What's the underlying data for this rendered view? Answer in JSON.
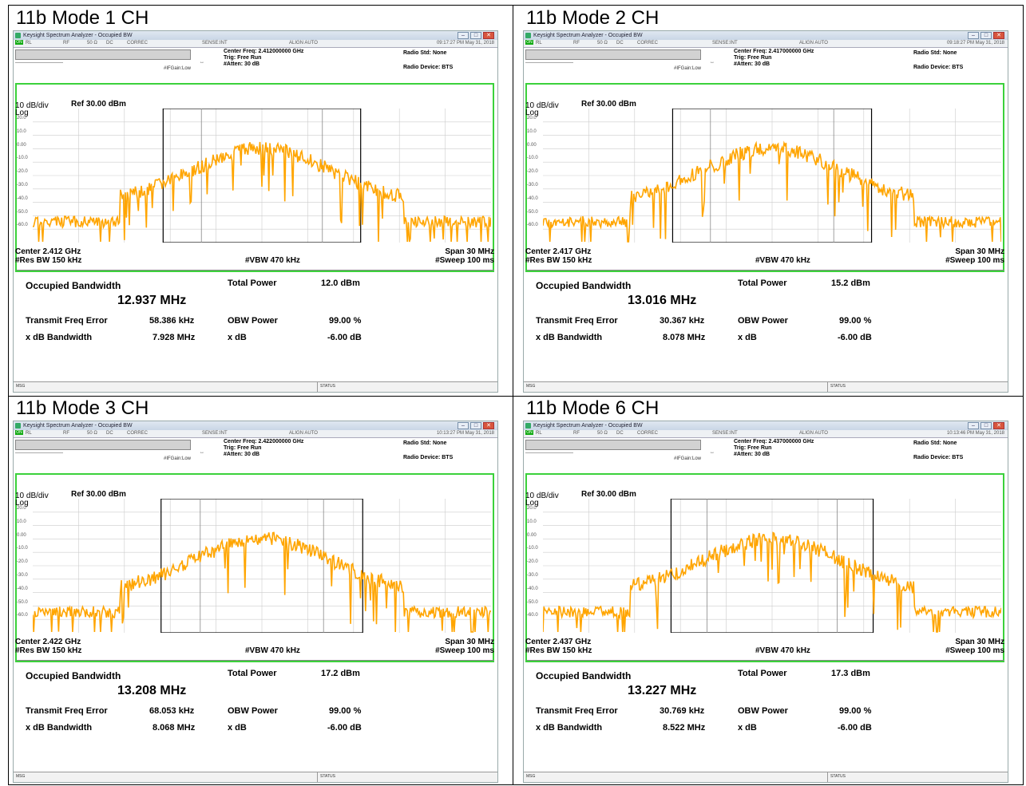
{
  "window": {
    "title": "Keysight Spectrum Analyzer - Occupied BW",
    "menu": {
      "rl": "RL",
      "rf": "RF",
      "ohm": "50 Ω",
      "dc": "DC",
      "corrdc": "CORREC",
      "sense": "SENSE:INT",
      "align": "ALIGN AUTO"
    },
    "if_gain": "#IFGain:Low",
    "trig": "Trig: Free Run",
    "atten": "#Atten: 30 dB",
    "radio_std": "Radio Std: None",
    "radio_device": "Radio Device: BTS",
    "scale": "10 dB/div",
    "log": "Log",
    "ref": "Ref 30.00 dBm",
    "ylabels": [
      "20.0",
      "10.0",
      "0.00",
      "-10.0",
      "-20.0",
      "-30.0",
      "-40.0",
      "-50.0",
      "-60.0"
    ],
    "res_bw": "#Res BW  150 kHz",
    "vbw": "#VBW  470 kHz",
    "span": "Span 30 MHz",
    "sweep": "#Sweep  100 ms",
    "labels": {
      "occ_bw": "Occupied Bandwidth",
      "total_power": "Total Power",
      "tfe": "Transmit Freq Error",
      "obw_power": "OBW Power",
      "xdb_bw": "x dB Bandwidth",
      "xdb": "x dB"
    },
    "msg": "MSG",
    "status": "STATUS",
    "trace_color": "#ffa500",
    "frame_color": "#3bd13b"
  },
  "panels": [
    {
      "title": "11b Mode 1 CH",
      "timestamp": "09:17:27 PM May 31, 2018",
      "center_freq": "Center Freq: 2.412000000 GHz",
      "center": "Center  2.412 GHz",
      "occ_bw": "12.937 MHz",
      "total_power": "12.0 dBm",
      "tfe": "58.386 kHz",
      "obw_power": "99.00 %",
      "xdb_bw": "7.928 MHz",
      "xdb": "-6.00 dB",
      "obw_fraction": 0.431,
      "xdb_fraction": 0.264
    },
    {
      "title": "11b Mode 2 CH",
      "timestamp": "09:18:27 PM May 31, 2018",
      "center_freq": "Center Freq: 2.417000000 GHz",
      "center": "Center  2.417 GHz",
      "occ_bw": "13.016 MHz",
      "total_power": "15.2 dBm",
      "tfe": "30.367 kHz",
      "obw_power": "99.00 %",
      "xdb_bw": "8.078 MHz",
      "xdb": "-6.00 dB",
      "obw_fraction": 0.434,
      "xdb_fraction": 0.269
    },
    {
      "title": "11b Mode 3 CH",
      "timestamp": "10:13:27 PM May 31, 2018",
      "center_freq": "Center Freq: 2.422000000 GHz",
      "center": "Center  2.422 GHz",
      "occ_bw": "13.208 MHz",
      "total_power": "17.2 dBm",
      "tfe": "68.053 kHz",
      "obw_power": "99.00 %",
      "xdb_bw": "8.068 MHz",
      "xdb": "-6.00 dB",
      "obw_fraction": 0.44,
      "xdb_fraction": 0.269
    },
    {
      "title": "11b Mode 6 CH",
      "timestamp": "10:13:46 PM May 31, 2018",
      "center_freq": "Center Freq: 2.437000000 GHz",
      "center": "Center  2.437 GHz",
      "occ_bw": "13.227 MHz",
      "total_power": "17.3 dBm",
      "tfe": "30.769 kHz",
      "obw_power": "99.00 %",
      "xdb_bw": "8.522 MHz",
      "xdb": "-6.00 dB",
      "obw_fraction": 0.441,
      "xdb_fraction": 0.284
    }
  ]
}
